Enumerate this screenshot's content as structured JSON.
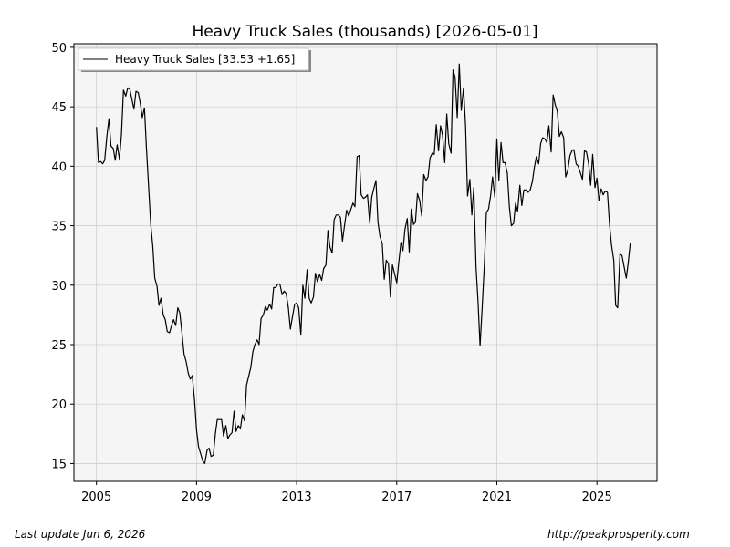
{
  "footer": {
    "last_update": "Last update Jun  6, 2026",
    "source_url": "http://peakprosperity.com"
  },
  "chart_data": {
    "type": "line",
    "title": "Heavy Truck Sales (thousands) [2026-05-01]",
    "xlabel": "",
    "ylabel": "",
    "xlim": [
      2004.1,
      2027.4
    ],
    "ylim": [
      13.5,
      50.3
    ],
    "x_ticks": [
      2005,
      2009,
      2013,
      2017,
      2021,
      2025
    ],
    "x_tick_labels": [
      "2005",
      "2009",
      "2013",
      "2017",
      "2021",
      "2025"
    ],
    "y_ticks": [
      15,
      20,
      25,
      30,
      35,
      40,
      45,
      50
    ],
    "y_tick_labels": [
      "15",
      "20",
      "25",
      "30",
      "35",
      "40",
      "45",
      "50"
    ],
    "grid": true,
    "plot_background": "#f5f5f5",
    "line_color": "#000000",
    "legend": {
      "placement": "top-left"
    },
    "series": [
      {
        "name": "Heavy Truck Sales [33.53 +1.65]",
        "points": [
          [
            2005.0,
            43.3
          ],
          [
            2005.08,
            40.3
          ],
          [
            2005.17,
            40.4
          ],
          [
            2005.25,
            40.2
          ],
          [
            2005.33,
            40.5
          ],
          [
            2005.42,
            42.6
          ],
          [
            2005.5,
            44.0
          ],
          [
            2005.58,
            41.7
          ],
          [
            2005.67,
            41.5
          ],
          [
            2005.75,
            40.5
          ],
          [
            2005.83,
            41.8
          ],
          [
            2005.92,
            40.6
          ],
          [
            2006.0,
            42.7
          ],
          [
            2006.08,
            46.4
          ],
          [
            2006.17,
            45.9
          ],
          [
            2006.25,
            46.6
          ],
          [
            2006.33,
            46.5
          ],
          [
            2006.42,
            45.6
          ],
          [
            2006.5,
            44.8
          ],
          [
            2006.58,
            46.3
          ],
          [
            2006.67,
            46.2
          ],
          [
            2006.75,
            45.3
          ],
          [
            2006.83,
            44.1
          ],
          [
            2006.92,
            44.9
          ],
          [
            2007.0,
            41.5
          ],
          [
            2007.08,
            38.5
          ],
          [
            2007.17,
            35.1
          ],
          [
            2007.25,
            33.3
          ],
          [
            2007.33,
            30.6
          ],
          [
            2007.42,
            29.9
          ],
          [
            2007.5,
            28.3
          ],
          [
            2007.58,
            28.9
          ],
          [
            2007.67,
            27.5
          ],
          [
            2007.75,
            27.1
          ],
          [
            2007.83,
            26.1
          ],
          [
            2007.92,
            26.0
          ],
          [
            2008.0,
            26.6
          ],
          [
            2008.08,
            27.1
          ],
          [
            2008.17,
            26.6
          ],
          [
            2008.25,
            28.1
          ],
          [
            2008.33,
            27.7
          ],
          [
            2008.42,
            25.9
          ],
          [
            2008.5,
            24.2
          ],
          [
            2008.58,
            23.6
          ],
          [
            2008.67,
            22.6
          ],
          [
            2008.75,
            22.1
          ],
          [
            2008.83,
            22.4
          ],
          [
            2008.92,
            20.3
          ],
          [
            2009.0,
            17.8
          ],
          [
            2009.08,
            16.4
          ],
          [
            2009.17,
            15.8
          ],
          [
            2009.25,
            15.2
          ],
          [
            2009.33,
            15.0
          ],
          [
            2009.42,
            16.1
          ],
          [
            2009.5,
            16.3
          ],
          [
            2009.58,
            15.6
          ],
          [
            2009.67,
            15.7
          ],
          [
            2009.75,
            17.5
          ],
          [
            2009.83,
            18.7
          ],
          [
            2009.92,
            18.7
          ],
          [
            2010.0,
            18.7
          ],
          [
            2010.08,
            17.3
          ],
          [
            2010.17,
            18.2
          ],
          [
            2010.25,
            17.1
          ],
          [
            2010.33,
            17.4
          ],
          [
            2010.42,
            17.6
          ],
          [
            2010.5,
            19.4
          ],
          [
            2010.58,
            17.7
          ],
          [
            2010.67,
            18.2
          ],
          [
            2010.75,
            17.9
          ],
          [
            2010.83,
            19.1
          ],
          [
            2010.92,
            18.6
          ],
          [
            2011.0,
            21.6
          ],
          [
            2011.08,
            22.3
          ],
          [
            2011.17,
            23.1
          ],
          [
            2011.25,
            24.4
          ],
          [
            2011.33,
            25.0
          ],
          [
            2011.42,
            25.4
          ],
          [
            2011.5,
            25.0
          ],
          [
            2011.58,
            27.2
          ],
          [
            2011.67,
            27.5
          ],
          [
            2011.75,
            28.2
          ],
          [
            2011.83,
            27.9
          ],
          [
            2011.92,
            28.4
          ],
          [
            2012.0,
            28.0
          ],
          [
            2012.08,
            29.8
          ],
          [
            2012.17,
            29.8
          ],
          [
            2012.25,
            30.1
          ],
          [
            2012.33,
            30.1
          ],
          [
            2012.42,
            29.2
          ],
          [
            2012.5,
            29.5
          ],
          [
            2012.58,
            29.3
          ],
          [
            2012.67,
            28.1
          ],
          [
            2012.75,
            26.3
          ],
          [
            2012.83,
            27.3
          ],
          [
            2012.92,
            28.4
          ],
          [
            2013.0,
            28.5
          ],
          [
            2013.08,
            28.1
          ],
          [
            2013.17,
            25.8
          ],
          [
            2013.25,
            30.0
          ],
          [
            2013.33,
            28.9
          ],
          [
            2013.42,
            31.3
          ],
          [
            2013.5,
            28.9
          ],
          [
            2013.58,
            28.5
          ],
          [
            2013.67,
            29.0
          ],
          [
            2013.75,
            31.0
          ],
          [
            2013.83,
            30.3
          ],
          [
            2013.92,
            30.9
          ],
          [
            2014.0,
            30.4
          ],
          [
            2014.08,
            31.4
          ],
          [
            2014.17,
            31.7
          ],
          [
            2014.25,
            34.6
          ],
          [
            2014.33,
            33.2
          ],
          [
            2014.42,
            32.7
          ],
          [
            2014.5,
            35.5
          ],
          [
            2014.58,
            35.9
          ],
          [
            2014.67,
            35.9
          ],
          [
            2014.75,
            35.7
          ],
          [
            2014.83,
            33.7
          ],
          [
            2014.92,
            35.1
          ],
          [
            2015.0,
            36.3
          ],
          [
            2015.08,
            35.8
          ],
          [
            2015.17,
            36.4
          ],
          [
            2015.25,
            36.9
          ],
          [
            2015.33,
            36.6
          ],
          [
            2015.42,
            40.8
          ],
          [
            2015.5,
            40.9
          ],
          [
            2015.58,
            37.6
          ],
          [
            2015.67,
            37.3
          ],
          [
            2015.75,
            37.4
          ],
          [
            2015.83,
            37.6
          ],
          [
            2015.92,
            35.2
          ],
          [
            2016.0,
            37.4
          ],
          [
            2016.08,
            38.1
          ],
          [
            2016.17,
            38.8
          ],
          [
            2016.25,
            35.3
          ],
          [
            2016.33,
            34.1
          ],
          [
            2016.42,
            33.5
          ],
          [
            2016.5,
            30.5
          ],
          [
            2016.58,
            32.1
          ],
          [
            2016.67,
            31.8
          ],
          [
            2016.75,
            29.0
          ],
          [
            2016.83,
            31.7
          ],
          [
            2016.92,
            30.9
          ],
          [
            2017.0,
            30.2
          ],
          [
            2017.08,
            31.9
          ],
          [
            2017.17,
            33.6
          ],
          [
            2017.25,
            32.9
          ],
          [
            2017.33,
            34.7
          ],
          [
            2017.42,
            35.6
          ],
          [
            2017.5,
            32.8
          ],
          [
            2017.58,
            36.4
          ],
          [
            2017.67,
            35.1
          ],
          [
            2017.75,
            35.3
          ],
          [
            2017.83,
            37.7
          ],
          [
            2017.92,
            37.1
          ],
          [
            2018.0,
            35.8
          ],
          [
            2018.08,
            39.3
          ],
          [
            2018.17,
            38.8
          ],
          [
            2018.25,
            39.1
          ],
          [
            2018.33,
            40.7
          ],
          [
            2018.42,
            41.1
          ],
          [
            2018.5,
            41.0
          ],
          [
            2018.58,
            43.5
          ],
          [
            2018.67,
            41.3
          ],
          [
            2018.75,
            43.4
          ],
          [
            2018.83,
            42.6
          ],
          [
            2018.92,
            40.3
          ],
          [
            2019.0,
            44.4
          ],
          [
            2019.08,
            41.9
          ],
          [
            2019.17,
            41.1
          ],
          [
            2019.25,
            48.1
          ],
          [
            2019.33,
            47.5
          ],
          [
            2019.42,
            44.1
          ],
          [
            2019.5,
            48.6
          ],
          [
            2019.58,
            44.7
          ],
          [
            2019.67,
            46.6
          ],
          [
            2019.75,
            43.4
          ],
          [
            2019.83,
            37.5
          ],
          [
            2019.92,
            38.9
          ],
          [
            2020.0,
            35.9
          ],
          [
            2020.08,
            38.2
          ],
          [
            2020.17,
            31.5
          ],
          [
            2020.25,
            28.6
          ],
          [
            2020.33,
            24.9
          ],
          [
            2020.42,
            28.4
          ],
          [
            2020.5,
            31.7
          ],
          [
            2020.58,
            36.1
          ],
          [
            2020.67,
            36.4
          ],
          [
            2020.75,
            37.5
          ],
          [
            2020.83,
            39.1
          ],
          [
            2020.92,
            37.4
          ],
          [
            2021.0,
            42.3
          ],
          [
            2021.08,
            38.8
          ],
          [
            2021.17,
            42.0
          ],
          [
            2021.25,
            40.3
          ],
          [
            2021.33,
            40.3
          ],
          [
            2021.42,
            39.4
          ],
          [
            2021.5,
            36.6
          ],
          [
            2021.58,
            35.0
          ],
          [
            2021.67,
            35.2
          ],
          [
            2021.75,
            36.9
          ],
          [
            2021.83,
            36.2
          ],
          [
            2021.92,
            38.4
          ],
          [
            2022.0,
            36.7
          ],
          [
            2022.08,
            38.0
          ],
          [
            2022.17,
            38.0
          ],
          [
            2022.25,
            37.8
          ],
          [
            2022.33,
            38.0
          ],
          [
            2022.42,
            38.7
          ],
          [
            2022.5,
            39.9
          ],
          [
            2022.58,
            40.8
          ],
          [
            2022.67,
            40.2
          ],
          [
            2022.75,
            41.9
          ],
          [
            2022.83,
            42.4
          ],
          [
            2022.92,
            42.3
          ],
          [
            2023.0,
            42.0
          ],
          [
            2023.08,
            43.4
          ],
          [
            2023.17,
            41.2
          ],
          [
            2023.25,
            46.0
          ],
          [
            2023.33,
            45.2
          ],
          [
            2023.42,
            44.6
          ],
          [
            2023.5,
            42.5
          ],
          [
            2023.58,
            42.9
          ],
          [
            2023.67,
            42.4
          ],
          [
            2023.75,
            39.1
          ],
          [
            2023.83,
            39.6
          ],
          [
            2023.92,
            40.9
          ],
          [
            2024.0,
            41.3
          ],
          [
            2024.08,
            41.4
          ],
          [
            2024.17,
            40.2
          ],
          [
            2024.25,
            40.0
          ],
          [
            2024.33,
            39.5
          ],
          [
            2024.42,
            38.9
          ],
          [
            2024.5,
            41.3
          ],
          [
            2024.58,
            41.2
          ],
          [
            2024.67,
            40.2
          ],
          [
            2024.75,
            38.4
          ],
          [
            2024.83,
            41.0
          ],
          [
            2024.92,
            38.2
          ],
          [
            2025.0,
            39.0
          ],
          [
            2025.08,
            37.1
          ],
          [
            2025.17,
            38.1
          ],
          [
            2025.25,
            37.6
          ],
          [
            2025.33,
            37.9
          ],
          [
            2025.42,
            37.8
          ],
          [
            2025.5,
            35.2
          ],
          [
            2025.58,
            33.4
          ],
          [
            2025.67,
            32.1
          ],
          [
            2025.75,
            28.3
          ],
          [
            2025.83,
            28.1
          ],
          [
            2025.92,
            32.6
          ],
          [
            2026.0,
            32.5
          ],
          [
            2026.08,
            31.6
          ],
          [
            2026.17,
            30.6
          ],
          [
            2026.25,
            31.9
          ],
          [
            2026.33,
            33.53
          ]
        ]
      }
    ]
  }
}
